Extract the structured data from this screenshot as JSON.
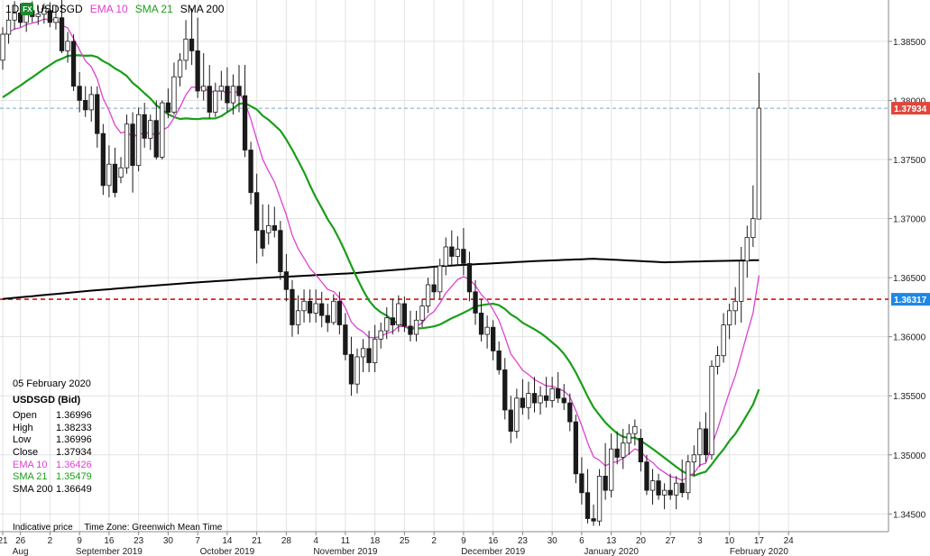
{
  "legend": {
    "timeframe": "1D",
    "icon": "fx-icon",
    "icon_text": "FX",
    "symbol": "USDSGD",
    "ema_label": "EMA 10",
    "sma21_label": "SMA 21",
    "sma200_label": "SMA 200"
  },
  "info": {
    "date": "05 February 2020",
    "symbol": "USDSGD (Bid)",
    "open_label": "Open",
    "open": "1.36996",
    "high_label": "High",
    "high": "1.38233",
    "low_label": "Low",
    "low": "1.36996",
    "close_label": "Close",
    "close": "1.37934",
    "ema_label": "EMA 10",
    "ema": "1.36426",
    "sma21_label": "SMA 21",
    "sma21": "1.35479",
    "sma200_label": "SMA 200",
    "sma200": "1.36649"
  },
  "footer": {
    "indicative": "Indicative price",
    "timezone": "Time Zone: Greenwich Mean Time"
  },
  "colors": {
    "up": "#ffffff",
    "down": "#1a1a1a",
    "ema": "#e040d0",
    "sma21": "#1a9e1a",
    "sma200": "#000000",
    "current_price": "#e0463c",
    "support": "#d31414",
    "support_badge": "#1e88e5"
  },
  "chart_data": {
    "type": "candlestick",
    "ylim": [
      1.3435,
      1.3885
    ],
    "y_ticks": [
      "1.38500",
      "1.38000",
      "1.37500",
      "1.37000",
      "1.36500",
      "1.36000",
      "1.35500",
      "1.35000",
      "1.34500"
    ],
    "y_tick_values": [
      1.385,
      1.38,
      1.375,
      1.37,
      1.365,
      1.36,
      1.355,
      1.35,
      1.345
    ],
    "current_price": 1.37934,
    "current_price_label": "1.37934",
    "support_level": 1.36317,
    "support_label": "1.36317",
    "x_day_labels": [
      "21",
      "26",
      "2",
      "9",
      "16",
      "23",
      "30",
      "7",
      "14",
      "21",
      "28",
      "4",
      "11",
      "18",
      "25",
      "2",
      "9",
      "16",
      "23",
      "30",
      "6",
      "13",
      "20",
      "27",
      "3",
      "10",
      "17",
      "24"
    ],
    "x_day_slots": [
      0,
      3,
      8,
      13,
      18,
      23,
      28,
      33,
      38,
      43,
      48,
      53,
      58,
      63,
      68,
      73,
      78,
      83,
      88,
      93,
      98,
      103,
      108,
      113,
      118,
      123,
      128,
      133
    ],
    "x_month_labels": [
      "Aug",
      "September 2019",
      "October 2019",
      "November 2019",
      "December 2019",
      "January 2020",
      "February 2020"
    ],
    "x_month_slots": [
      3,
      18,
      38,
      58,
      83,
      103,
      128
    ],
    "candles": [
      {
        "o": 1.3834,
        "h": 1.3862,
        "l": 1.3826,
        "c": 1.3856
      },
      {
        "o": 1.3856,
        "h": 1.3876,
        "l": 1.3848,
        "c": 1.3868
      },
      {
        "o": 1.3868,
        "h": 1.3884,
        "l": 1.386,
        "c": 1.3874
      },
      {
        "o": 1.3874,
        "h": 1.3882,
        "l": 1.3862,
        "c": 1.3866
      },
      {
        "o": 1.3866,
        "h": 1.388,
        "l": 1.3858,
        "c": 1.3876
      },
      {
        "o": 1.3876,
        "h": 1.3884,
        "l": 1.3866,
        "c": 1.3871
      },
      {
        "o": 1.3871,
        "h": 1.388,
        "l": 1.3864,
        "c": 1.3873
      },
      {
        "o": 1.3873,
        "h": 1.3882,
        "l": 1.3865,
        "c": 1.3878
      },
      {
        "o": 1.3876,
        "h": 1.3883,
        "l": 1.3862,
        "c": 1.3866
      },
      {
        "o": 1.3866,
        "h": 1.388,
        "l": 1.386,
        "c": 1.387
      },
      {
        "o": 1.387,
        "h": 1.3886,
        "l": 1.384,
        "c": 1.3842
      },
      {
        "o": 1.3842,
        "h": 1.3858,
        "l": 1.3832,
        "c": 1.385
      },
      {
        "o": 1.385,
        "h": 1.3856,
        "l": 1.3808,
        "c": 1.3812
      },
      {
        "o": 1.3812,
        "h": 1.3824,
        "l": 1.379,
        "c": 1.38
      },
      {
        "o": 1.38,
        "h": 1.3812,
        "l": 1.3786,
        "c": 1.3792
      },
      {
        "o": 1.3792,
        "h": 1.3812,
        "l": 1.3782,
        "c": 1.3805
      },
      {
        "o": 1.3805,
        "h": 1.3812,
        "l": 1.376,
        "c": 1.3772
      },
      {
        "o": 1.3772,
        "h": 1.378,
        "l": 1.372,
        "c": 1.3728
      },
      {
        "o": 1.3728,
        "h": 1.3762,
        "l": 1.3718,
        "c": 1.3746
      },
      {
        "o": 1.3746,
        "h": 1.376,
        "l": 1.3718,
        "c": 1.3722
      },
      {
        "o": 1.3735,
        "h": 1.3752,
        "l": 1.373,
        "c": 1.3743
      },
      {
        "o": 1.3743,
        "h": 1.3788,
        "l": 1.3738,
        "c": 1.378
      },
      {
        "o": 1.378,
        "h": 1.379,
        "l": 1.3722,
        "c": 1.3745
      },
      {
        "o": 1.3745,
        "h": 1.3794,
        "l": 1.374,
        "c": 1.3788
      },
      {
        "o": 1.3788,
        "h": 1.3798,
        "l": 1.376,
        "c": 1.3768
      },
      {
        "o": 1.3768,
        "h": 1.3788,
        "l": 1.3758,
        "c": 1.3783
      },
      {
        "o": 1.3783,
        "h": 1.38,
        "l": 1.375,
        "c": 1.3752
      },
      {
        "o": 1.3752,
        "h": 1.38,
        "l": 1.375,
        "c": 1.3798
      },
      {
        "o": 1.3798,
        "h": 1.381,
        "l": 1.3785,
        "c": 1.379
      },
      {
        "o": 1.379,
        "h": 1.3832,
        "l": 1.3788,
        "c": 1.382
      },
      {
        "o": 1.382,
        "h": 1.384,
        "l": 1.3812,
        "c": 1.3834
      },
      {
        "o": 1.3834,
        "h": 1.3868,
        "l": 1.3826,
        "c": 1.3852
      },
      {
        "o": 1.3852,
        "h": 1.3878,
        "l": 1.383,
        "c": 1.3842
      },
      {
        "o": 1.3842,
        "h": 1.387,
        "l": 1.3802,
        "c": 1.3808
      },
      {
        "o": 1.3808,
        "h": 1.384,
        "l": 1.38,
        "c": 1.3812
      },
      {
        "o": 1.3812,
        "h": 1.383,
        "l": 1.3785,
        "c": 1.379
      },
      {
        "o": 1.379,
        "h": 1.3815,
        "l": 1.3786,
        "c": 1.3808
      },
      {
        "o": 1.3808,
        "h": 1.3825,
        "l": 1.38,
        "c": 1.3812
      },
      {
        "o": 1.3812,
        "h": 1.3828,
        "l": 1.379,
        "c": 1.3798
      },
      {
        "o": 1.3798,
        "h": 1.3822,
        "l": 1.3788,
        "c": 1.3812
      },
      {
        "o": 1.3812,
        "h": 1.383,
        "l": 1.379,
        "c": 1.3804
      },
      {
        "o": 1.3804,
        "h": 1.383,
        "l": 1.3752,
        "c": 1.3758
      },
      {
        "o": 1.3758,
        "h": 1.3765,
        "l": 1.3712,
        "c": 1.3722
      },
      {
        "o": 1.3722,
        "h": 1.3738,
        "l": 1.3662,
        "c": 1.369
      },
      {
        "o": 1.369,
        "h": 1.3712,
        "l": 1.3668,
        "c": 1.3675
      },
      {
        "o": 1.3688,
        "h": 1.3712,
        "l": 1.3678,
        "c": 1.3694
      },
      {
        "o": 1.3694,
        "h": 1.371,
        "l": 1.3684,
        "c": 1.369
      },
      {
        "o": 1.369,
        "h": 1.3698,
        "l": 1.3648,
        "c": 1.3655
      },
      {
        "o": 1.3655,
        "h": 1.367,
        "l": 1.363,
        "c": 1.364
      },
      {
        "o": 1.364,
        "h": 1.3648,
        "l": 1.36,
        "c": 1.361
      },
      {
        "o": 1.361,
        "h": 1.3635,
        "l": 1.3602,
        "c": 1.3622
      },
      {
        "o": 1.3622,
        "h": 1.364,
        "l": 1.3612,
        "c": 1.363
      },
      {
        "o": 1.363,
        "h": 1.364,
        "l": 1.3612,
        "c": 1.362
      },
      {
        "o": 1.362,
        "h": 1.364,
        "l": 1.3612,
        "c": 1.3628
      },
      {
        "o": 1.3628,
        "h": 1.3638,
        "l": 1.3608,
        "c": 1.3618
      },
      {
        "o": 1.3618,
        "h": 1.3628,
        "l": 1.3604,
        "c": 1.3612
      },
      {
        "o": 1.3612,
        "h": 1.3636,
        "l": 1.361,
        "c": 1.363
      },
      {
        "o": 1.363,
        "h": 1.3638,
        "l": 1.3602,
        "c": 1.361
      },
      {
        "o": 1.361,
        "h": 1.362,
        "l": 1.358,
        "c": 1.3585
      },
      {
        "o": 1.3585,
        "h": 1.36,
        "l": 1.355,
        "c": 1.356
      },
      {
        "o": 1.356,
        "h": 1.359,
        "l": 1.3552,
        "c": 1.3583
      },
      {
        "o": 1.3583,
        "h": 1.3598,
        "l": 1.357,
        "c": 1.359
      },
      {
        "o": 1.359,
        "h": 1.3605,
        "l": 1.357,
        "c": 1.3578
      },
      {
        "o": 1.3578,
        "h": 1.361,
        "l": 1.357,
        "c": 1.3598
      },
      {
        "o": 1.3598,
        "h": 1.3612,
        "l": 1.359,
        "c": 1.3605
      },
      {
        "o": 1.3605,
        "h": 1.3625,
        "l": 1.3598,
        "c": 1.3616
      },
      {
        "o": 1.3616,
        "h": 1.3632,
        "l": 1.3602,
        "c": 1.361
      },
      {
        "o": 1.361,
        "h": 1.3635,
        "l": 1.3604,
        "c": 1.3628
      },
      {
        "o": 1.3628,
        "h": 1.3634,
        "l": 1.3604,
        "c": 1.3609
      },
      {
        "o": 1.3609,
        "h": 1.3622,
        "l": 1.3596,
        "c": 1.3602
      },
      {
        "o": 1.3602,
        "h": 1.3622,
        "l": 1.3596,
        "c": 1.3614
      },
      {
        "o": 1.3614,
        "h": 1.3632,
        "l": 1.3608,
        "c": 1.3626
      },
      {
        "o": 1.3626,
        "h": 1.365,
        "l": 1.362,
        "c": 1.3644
      },
      {
        "o": 1.3644,
        "h": 1.366,
        "l": 1.3632,
        "c": 1.3638
      },
      {
        "o": 1.3638,
        "h": 1.3666,
        "l": 1.3632,
        "c": 1.366
      },
      {
        "o": 1.366,
        "h": 1.3684,
        "l": 1.3652,
        "c": 1.3676
      },
      {
        "o": 1.3676,
        "h": 1.369,
        "l": 1.366,
        "c": 1.3668
      },
      {
        "o": 1.3668,
        "h": 1.3685,
        "l": 1.366,
        "c": 1.3674
      },
      {
        "o": 1.3674,
        "h": 1.3692,
        "l": 1.3652,
        "c": 1.3662
      },
      {
        "o": 1.3662,
        "h": 1.3672,
        "l": 1.363,
        "c": 1.3638
      },
      {
        "o": 1.3638,
        "h": 1.3648,
        "l": 1.361,
        "c": 1.362
      },
      {
        "o": 1.362,
        "h": 1.3632,
        "l": 1.3596,
        "c": 1.3602
      },
      {
        "o": 1.3602,
        "h": 1.3618,
        "l": 1.359,
        "c": 1.3608
      },
      {
        "o": 1.3608,
        "h": 1.3614,
        "l": 1.358,
        "c": 1.3588
      },
      {
        "o": 1.3588,
        "h": 1.3596,
        "l": 1.3568,
        "c": 1.3572
      },
      {
        "o": 1.3572,
        "h": 1.3582,
        "l": 1.353,
        "c": 1.3538
      },
      {
        "o": 1.3538,
        "h": 1.355,
        "l": 1.351,
        "c": 1.352
      },
      {
        "o": 1.352,
        "h": 1.3556,
        "l": 1.3514,
        "c": 1.3548
      },
      {
        "o": 1.3548,
        "h": 1.3564,
        "l": 1.3534,
        "c": 1.354
      },
      {
        "o": 1.354,
        "h": 1.3562,
        "l": 1.353,
        "c": 1.3552
      },
      {
        "o": 1.3552,
        "h": 1.3566,
        "l": 1.3536,
        "c": 1.3544
      },
      {
        "o": 1.3544,
        "h": 1.3558,
        "l": 1.3534,
        "c": 1.355
      },
      {
        "o": 1.355,
        "h": 1.3566,
        "l": 1.354,
        "c": 1.3546
      },
      {
        "o": 1.3546,
        "h": 1.3566,
        "l": 1.354,
        "c": 1.3556
      },
      {
        "o": 1.3556,
        "h": 1.357,
        "l": 1.3544,
        "c": 1.3548
      },
      {
        "o": 1.3548,
        "h": 1.356,
        "l": 1.3538,
        "c": 1.3544
      },
      {
        "o": 1.3544,
        "h": 1.3552,
        "l": 1.352,
        "c": 1.3528
      },
      {
        "o": 1.3528,
        "h": 1.3534,
        "l": 1.3476,
        "c": 1.3484
      },
      {
        "o": 1.3484,
        "h": 1.3498,
        "l": 1.3458,
        "c": 1.3468
      },
      {
        "o": 1.3468,
        "h": 1.3488,
        "l": 1.3442,
        "c": 1.3446
      },
      {
        "o": 1.3446,
        "h": 1.3458,
        "l": 1.344,
        "c": 1.3444
      },
      {
        "o": 1.3444,
        "h": 1.3488,
        "l": 1.344,
        "c": 1.3482
      },
      {
        "o": 1.3482,
        "h": 1.351,
        "l": 1.3462,
        "c": 1.347
      },
      {
        "o": 1.347,
        "h": 1.3518,
        "l": 1.3464,
        "c": 1.3505
      },
      {
        "o": 1.3505,
        "h": 1.352,
        "l": 1.3492,
        "c": 1.3498
      },
      {
        "o": 1.3498,
        "h": 1.3522,
        "l": 1.3488,
        "c": 1.351
      },
      {
        "o": 1.351,
        "h": 1.3526,
        "l": 1.35,
        "c": 1.3518
      },
      {
        "o": 1.3518,
        "h": 1.353,
        "l": 1.3508,
        "c": 1.3524
      },
      {
        "o": 1.3514,
        "h": 1.3522,
        "l": 1.3486,
        "c": 1.3494
      },
      {
        "o": 1.3494,
        "h": 1.35,
        "l": 1.3466,
        "c": 1.347
      },
      {
        "o": 1.347,
        "h": 1.3488,
        "l": 1.3458,
        "c": 1.3478
      },
      {
        "o": 1.3478,
        "h": 1.3484,
        "l": 1.3462,
        "c": 1.3466
      },
      {
        "o": 1.3466,
        "h": 1.3476,
        "l": 1.3454,
        "c": 1.347
      },
      {
        "o": 1.347,
        "h": 1.3484,
        "l": 1.3462,
        "c": 1.3466
      },
      {
        "o": 1.3466,
        "h": 1.3482,
        "l": 1.3454,
        "c": 1.3476
      },
      {
        "o": 1.3476,
        "h": 1.3496,
        "l": 1.3464,
        "c": 1.3468
      },
      {
        "o": 1.3468,
        "h": 1.35,
        "l": 1.3462,
        "c": 1.3494
      },
      {
        "o": 1.3494,
        "h": 1.3508,
        "l": 1.3482,
        "c": 1.35
      },
      {
        "o": 1.35,
        "h": 1.3528,
        "l": 1.349,
        "c": 1.3522
      },
      {
        "o": 1.3522,
        "h": 1.3536,
        "l": 1.3494,
        "c": 1.35
      },
      {
        "o": 1.35,
        "h": 1.358,
        "l": 1.3496,
        "c": 1.3575
      },
      {
        "o": 1.3575,
        "h": 1.3592,
        "l": 1.3568,
        "c": 1.3584
      },
      {
        "o": 1.3584,
        "h": 1.362,
        "l": 1.3578,
        "c": 1.361
      },
      {
        "o": 1.361,
        "h": 1.3628,
        "l": 1.3598,
        "c": 1.3622
      },
      {
        "o": 1.3622,
        "h": 1.3642,
        "l": 1.361,
        "c": 1.363
      },
      {
        "o": 1.363,
        "h": 1.3676,
        "l": 1.3612,
        "c": 1.3664
      },
      {
        "o": 1.3664,
        "h": 1.3694,
        "l": 1.365,
        "c": 1.3684
      },
      {
        "o": 1.3684,
        "h": 1.3728,
        "l": 1.3676,
        "c": 1.37
      },
      {
        "o": 1.36996,
        "h": 1.38233,
        "l": 1.36996,
        "c": 1.37934
      }
    ],
    "ema10_start": 1.3855,
    "sma21_start": 1.38,
    "sma200": [
      [
        0,
        1.3632
      ],
      [
        15,
        1.3639
      ],
      [
        30,
        1.3645
      ],
      [
        45,
        1.365
      ],
      [
        60,
        1.3654
      ],
      [
        75,
        1.366
      ],
      [
        90,
        1.3664
      ],
      [
        100,
        1.3666
      ],
      [
        112,
        1.3663
      ],
      [
        120,
        1.3664
      ],
      [
        130,
        1.3665
      ]
    ]
  }
}
